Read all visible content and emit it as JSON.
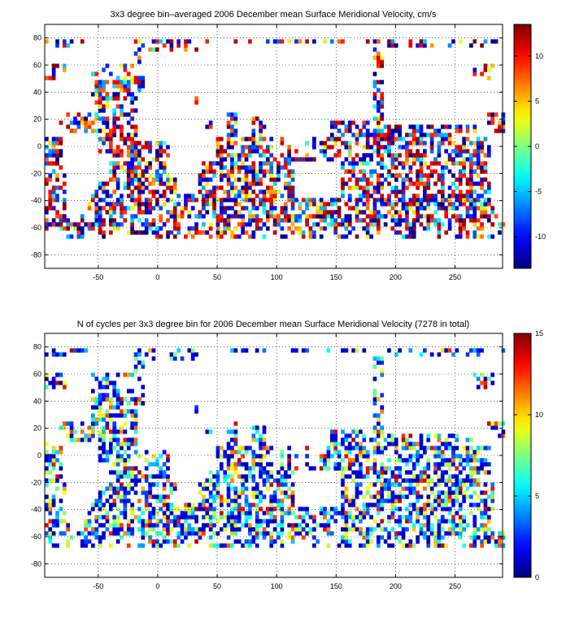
{
  "chart_data": [
    {
      "type": "heatmap",
      "title": "3x3 degree bin–averaged 2006 December mean Surface Meridional Velocity, cm/s",
      "xlim": [
        -95,
        290
      ],
      "ylim": [
        -90,
        90
      ],
      "x_ticks": [
        -50,
        0,
        50,
        100,
        150,
        200,
        250
      ],
      "y_ticks": [
        -80,
        -60,
        -40,
        -20,
        0,
        20,
        40,
        60,
        80
      ],
      "grid": true,
      "grid_style": "dotted",
      "colorbar": {
        "min": -13.5,
        "max": 13.5,
        "ticks": [
          -10,
          -5,
          0,
          5,
          10
        ],
        "colormap": "jet"
      },
      "bin_size_deg": 3,
      "coverage_lat": [
        -68,
        80
      ]
    },
    {
      "type": "heatmap",
      "title": "N of cycles per 3x3 degree bin for 2006 December mean Surface Meridional Velocity (7278 in total)",
      "xlim": [
        -95,
        290
      ],
      "ylim": [
        -90,
        90
      ],
      "x_ticks": [
        -50,
        0,
        50,
        100,
        150,
        200,
        250
      ],
      "y_ticks": [
        -80,
        -60,
        -40,
        -20,
        0,
        20,
        40,
        60,
        80
      ],
      "grid": true,
      "grid_style": "dotted",
      "colorbar": {
        "min": 0,
        "max": 15,
        "ticks": [
          0,
          5,
          10,
          15
        ],
        "colormap": "jet"
      },
      "bin_size_deg": 3,
      "coverage_lat": [
        -68,
        80
      ]
    }
  ]
}
